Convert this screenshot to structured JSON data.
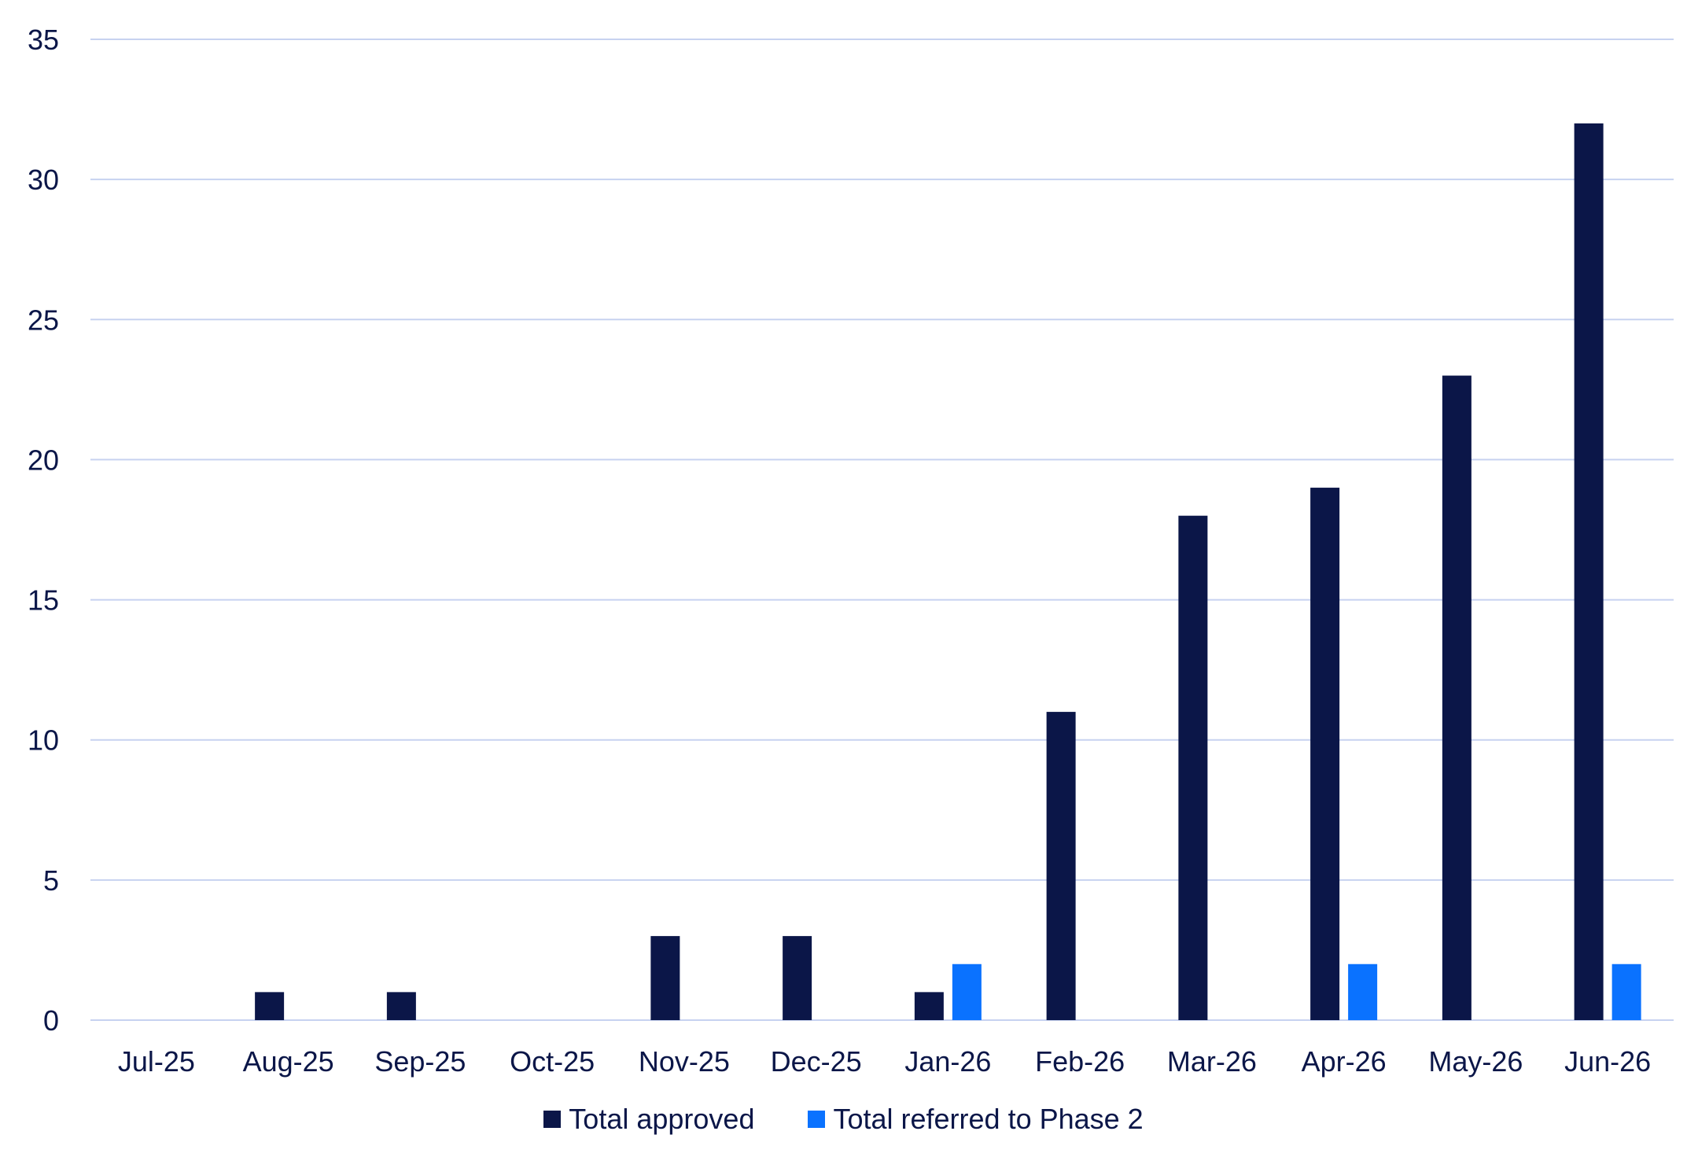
{
  "chart_data": {
    "type": "bar",
    "title": "",
    "xlabel": "",
    "ylabel": "",
    "categories": [
      "Jul-25",
      "Aug-25",
      "Sep-25",
      "Oct-25",
      "Nov-25",
      "Dec-25",
      "Jan-26",
      "Feb-26",
      "Mar-26",
      "Apr-26",
      "May-26",
      "Jun-26"
    ],
    "series": [
      {
        "name": "Total approved",
        "color": "#0b1648",
        "values": [
          0,
          1,
          1,
          0,
          3,
          3,
          1,
          11,
          18,
          19,
          23,
          32
        ]
      },
      {
        "name": "Total referred to Phase 2",
        "color": "#0a72ff",
        "values": [
          0,
          0,
          0,
          0,
          0,
          0,
          2,
          0,
          0,
          2,
          0,
          2
        ]
      }
    ],
    "ylim": [
      0,
      35
    ],
    "yticks": [
      0,
      5,
      10,
      15,
      20,
      25,
      30,
      35
    ],
    "grid": true,
    "gridline_color": "#c7d2f0",
    "legend_position": "bottom-center"
  }
}
